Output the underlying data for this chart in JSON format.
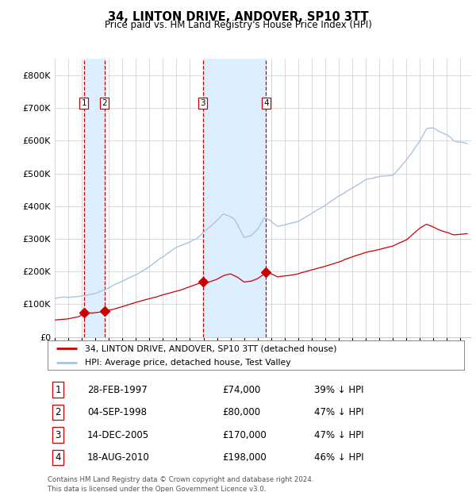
{
  "title": "34, LINTON DRIVE, ANDOVER, SP10 3TT",
  "subtitle": "Price paid vs. HM Land Registry's House Price Index (HPI)",
  "footer": "Contains HM Land Registry data © Crown copyright and database right 2024.\nThis data is licensed under the Open Government Licence v3.0.",
  "legend_line1": "34, LINTON DRIVE, ANDOVER, SP10 3TT (detached house)",
  "legend_line2": "HPI: Average price, detached house, Test Valley",
  "transactions": [
    {
      "num": 1,
      "date": "28-FEB-1997",
      "price": 74000,
      "pct": "39%",
      "dir": "↓",
      "x_year": 1997.15
    },
    {
      "num": 2,
      "date": "04-SEP-1998",
      "price": 80000,
      "pct": "47%",
      "dir": "↓",
      "x_year": 1998.67
    },
    {
      "num": 3,
      "date": "14-DEC-2005",
      "price": 170000,
      "pct": "47%",
      "dir": "↓",
      "x_year": 2005.96
    },
    {
      "num": 4,
      "date": "18-AUG-2010",
      "price": 198000,
      "pct": "46%",
      "dir": "↓",
      "x_year": 2010.63
    }
  ],
  "hpi_color": "#aac4e0",
  "price_color": "#cc0000",
  "vline_color": "#cc0000",
  "shade_color": "#ddeeff",
  "grid_color": "#cccccc",
  "bg_color": "#ffffff",
  "ylim": [
    0,
    850000
  ],
  "xlim_start": 1995.0,
  "xlim_end": 2025.8
}
